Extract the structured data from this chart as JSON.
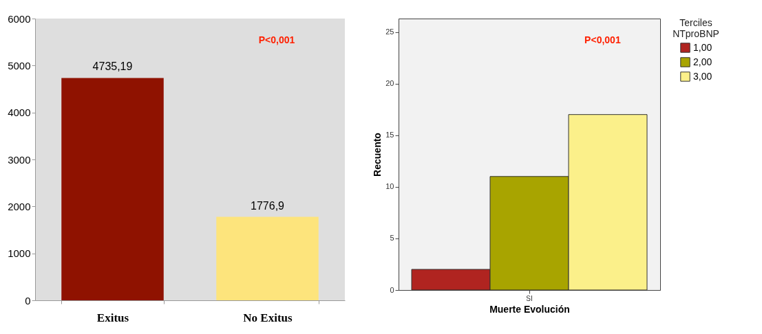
{
  "chart_data": [
    {
      "type": "bar",
      "categories": [
        "Exitus",
        "No Exitus"
      ],
      "values": [
        4735.19,
        1776.9
      ],
      "colors": [
        "#8f1200",
        "#fde47c"
      ],
      "value_labels": [
        "4735,19",
        "1776,9"
      ],
      "ylim": [
        0,
        6000
      ],
      "yticks": [
        0,
        1000,
        2000,
        3000,
        4000,
        5000,
        6000
      ],
      "grid": false,
      "annotations": [
        "P<0,001"
      ]
    },
    {
      "type": "bar",
      "categories": [
        "SI"
      ],
      "xlabel": "Muerte Evolución",
      "ylabel": "Recuento",
      "legend_title": "Terciles NTproBNP",
      "legend": "right",
      "grid": false,
      "ylim": [
        0,
        26.3
      ],
      "yticks": [
        0,
        5,
        10,
        15,
        20,
        25
      ],
      "annotations": [
        "P<0,001"
      ],
      "series": [
        {
          "name": "1,00",
          "color": "#b02420",
          "values": [
            2
          ]
        },
        {
          "name": "2,00",
          "color": "#a8a400",
          "values": [
            11
          ]
        },
        {
          "name": "3,00",
          "color": "#fbf08a",
          "values": [
            17
          ]
        }
      ]
    }
  ]
}
